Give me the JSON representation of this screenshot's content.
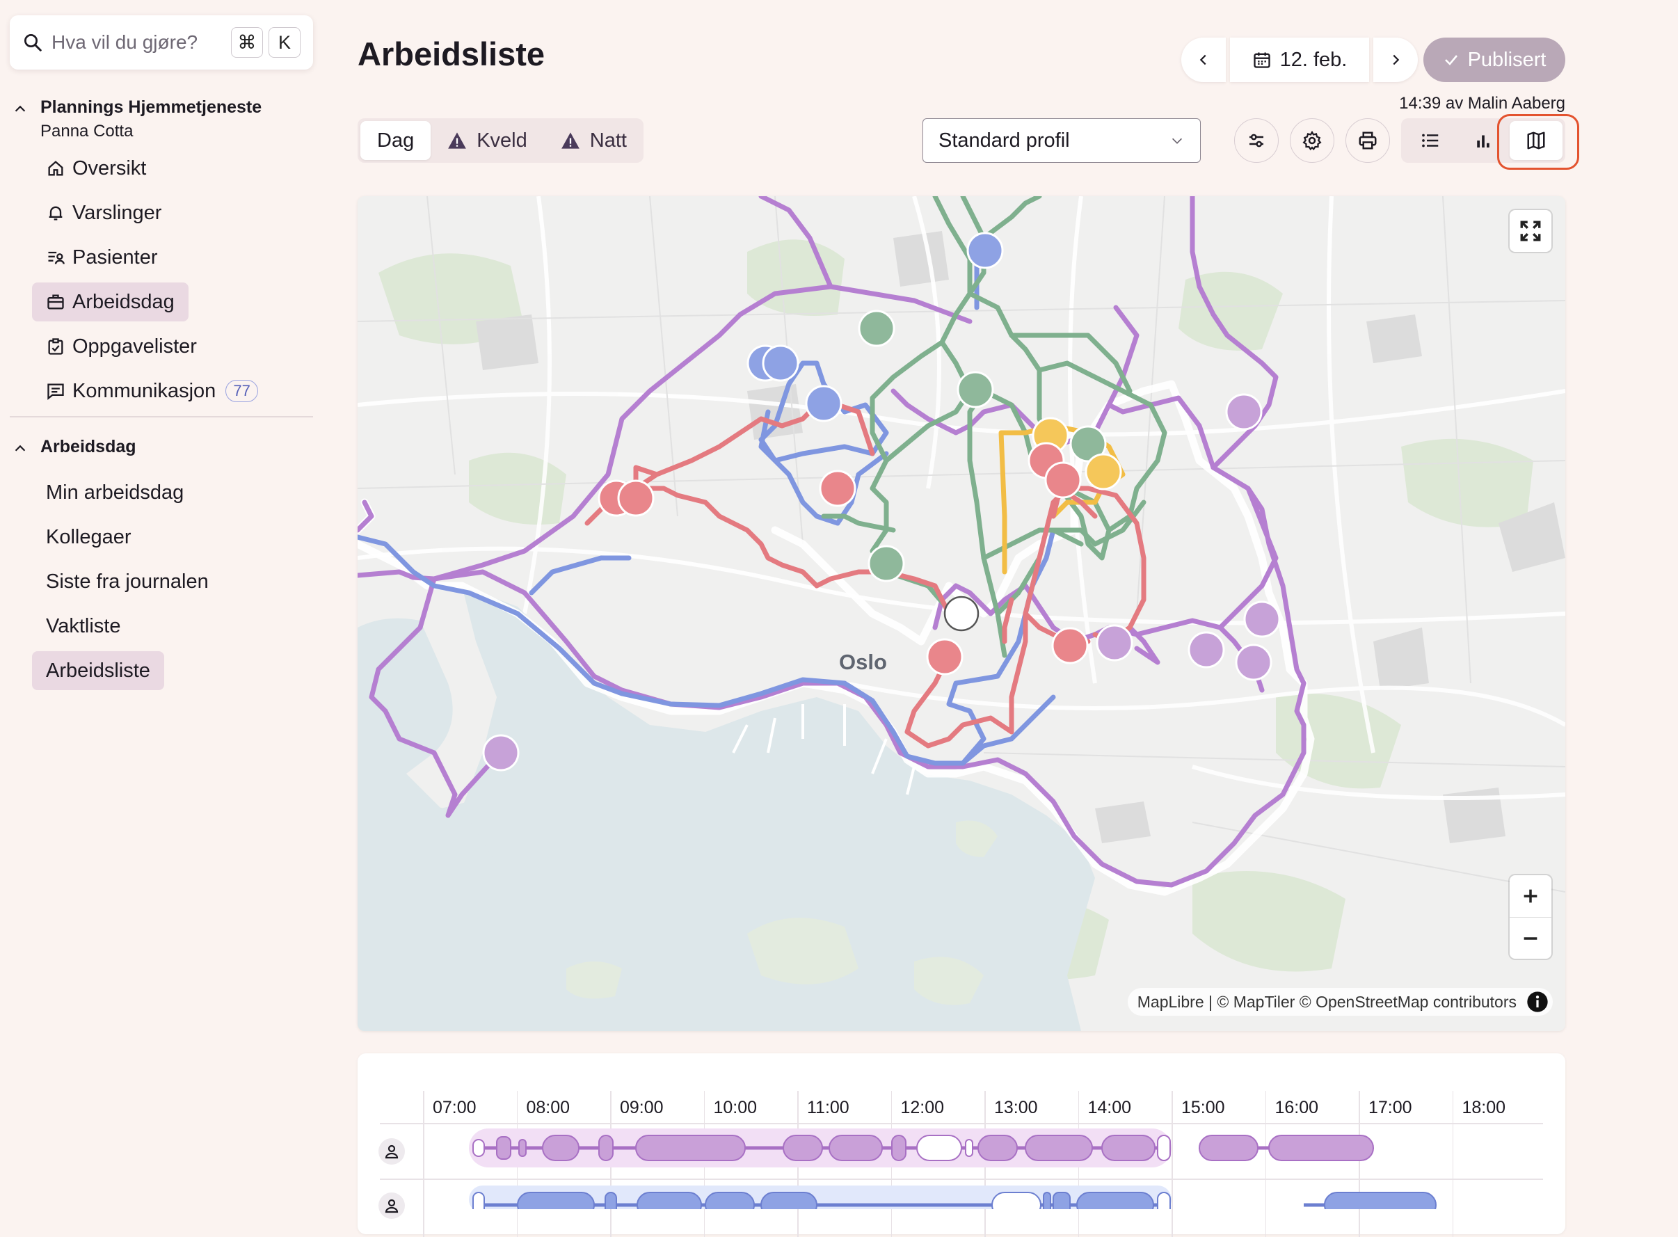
{
  "search": {
    "placeholder": "Hva vil du gjøre?",
    "shortcut_cmd": "⌘",
    "shortcut_key": "K"
  },
  "sidebar": {
    "org": {
      "name": "Plannings Hjemmetjeneste",
      "sub": "Panna Cotta"
    },
    "items": [
      {
        "label": "Oversikt",
        "icon": "home-icon"
      },
      {
        "label": "Varslinger",
        "icon": "bell-icon"
      },
      {
        "label": "Pasienter",
        "icon": "patients-icon"
      },
      {
        "label": "Arbeidsdag",
        "icon": "workday-icon",
        "active": true
      },
      {
        "label": "Oppgavelister",
        "icon": "clipboard-icon"
      },
      {
        "label": "Kommunikasjon",
        "icon": "message-icon",
        "badge": "77"
      }
    ],
    "section2": {
      "title": "Arbeidsdag",
      "items": [
        {
          "label": "Min arbeidsdag"
        },
        {
          "label": "Kollegaer"
        },
        {
          "label": "Siste fra journalen"
        },
        {
          "label": "Vaktliste"
        },
        {
          "label": "Arbeidsliste",
          "active": true
        }
      ]
    }
  },
  "header": {
    "title": "Arbeidsliste",
    "date": "12. feb.",
    "publish_label": "Publisert",
    "published_by": "14:39 av Malin Aaberg"
  },
  "shift_tabs": [
    {
      "label": "Dag",
      "active": true
    },
    {
      "label": "Kveld",
      "warning": true
    },
    {
      "label": "Natt",
      "warning": true
    }
  ],
  "profile_select": {
    "value": "Standard profil"
  },
  "map": {
    "city_label": "Oslo",
    "attribution": "MapLibre | © MapTiler © OpenStreetMap contributors",
    "route_colors": {
      "purple": "#b57fd1",
      "blue": "#7f96e0",
      "green": "#7fb08e",
      "red": "#e47a80",
      "yellow": "#f2bd45"
    }
  },
  "timeline": {
    "hours": [
      "07:00",
      "08:00",
      "09:00",
      "10:00",
      "11:00",
      "12:00",
      "13:00",
      "14:00",
      "15:00",
      "16:00",
      "17:00",
      "18:00"
    ]
  },
  "colors": {
    "accent_purple": "#c9a0d8",
    "accent_blue": "#8ea2e4",
    "highlight": "#e3532f",
    "publish_bg": "#b9a8b7"
  }
}
